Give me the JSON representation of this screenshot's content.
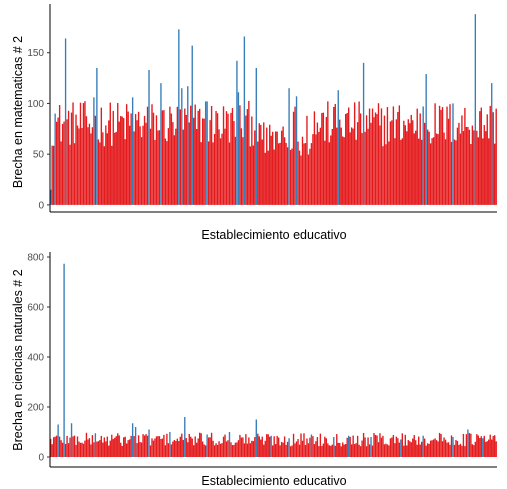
{
  "colors": {
    "red": "#e41a1c",
    "blue": "#377eb8"
  },
  "chart_data": [
    {
      "type": "bar",
      "id": "math",
      "xlabel": "Establecimiento educativo",
      "ylabel": "Brecha en matematicas # 2",
      "ylim": [
        -7,
        198
      ],
      "yticks": [
        0,
        50,
        100,
        150
      ],
      "grid": false,
      "legend": "none",
      "n_bars": 300,
      "baseline": 80,
      "highlights": [
        {
          "i": 0,
          "v": 15
        },
        {
          "i": 3,
          "v": 90
        },
        {
          "i": 10,
          "v": 164
        },
        {
          "i": 29,
          "v": 106
        },
        {
          "i": 31,
          "v": 135
        },
        {
          "i": 55,
          "v": 106
        },
        {
          "i": 66,
          "v": 133
        },
        {
          "i": 74,
          "v": 120
        },
        {
          "i": 86,
          "v": 173
        },
        {
          "i": 88,
          "v": 115
        },
        {
          "i": 92,
          "v": 117
        },
        {
          "i": 95,
          "v": 157
        },
        {
          "i": 104,
          "v": 102
        },
        {
          "i": 105,
          "v": 102
        },
        {
          "i": 125,
          "v": 142
        },
        {
          "i": 126,
          "v": 111
        },
        {
          "i": 130,
          "v": 166
        },
        {
          "i": 138,
          "v": 135
        },
        {
          "i": 160,
          "v": 115
        },
        {
          "i": 165,
          "v": 107
        },
        {
          "i": 193,
          "v": 113
        },
        {
          "i": 210,
          "v": 140
        },
        {
          "i": 250,
          "v": 97
        },
        {
          "i": 252,
          "v": 129
        },
        {
          "i": 270,
          "v": 100
        },
        {
          "i": 285,
          "v": 188
        },
        {
          "i": 296,
          "v": 120
        }
      ]
    },
    {
      "type": "bar",
      "id": "science",
      "xlabel": "Establecimiento educativo",
      "ylabel": "Brecha en ciencias naturales # 2",
      "ylim": [
        -40,
        820
      ],
      "yticks": [
        0,
        200,
        400,
        600,
        800
      ],
      "grid": false,
      "legend": "none",
      "n_bars": 300,
      "baseline": 70,
      "highlights": [
        {
          "i": 5,
          "v": 130
        },
        {
          "i": 9,
          "v": 773
        },
        {
          "i": 14,
          "v": 135
        },
        {
          "i": 30,
          "v": 95
        },
        {
          "i": 55,
          "v": 135
        },
        {
          "i": 57,
          "v": 120
        },
        {
          "i": 66,
          "v": 110
        },
        {
          "i": 80,
          "v": 100
        },
        {
          "i": 90,
          "v": 160
        },
        {
          "i": 105,
          "v": 90
        },
        {
          "i": 120,
          "v": 100
        },
        {
          "i": 138,
          "v": 150
        },
        {
          "i": 148,
          "v": 85
        },
        {
          "i": 160,
          "v": 75
        },
        {
          "i": 175,
          "v": 90
        },
        {
          "i": 190,
          "v": 80
        },
        {
          "i": 200,
          "v": 85
        },
        {
          "i": 215,
          "v": 80
        },
        {
          "i": 235,
          "v": 70
        },
        {
          "i": 250,
          "v": 85
        },
        {
          "i": 270,
          "v": 80
        },
        {
          "i": 280,
          "v": 110
        },
        {
          "i": 290,
          "v": 75
        }
      ]
    }
  ]
}
